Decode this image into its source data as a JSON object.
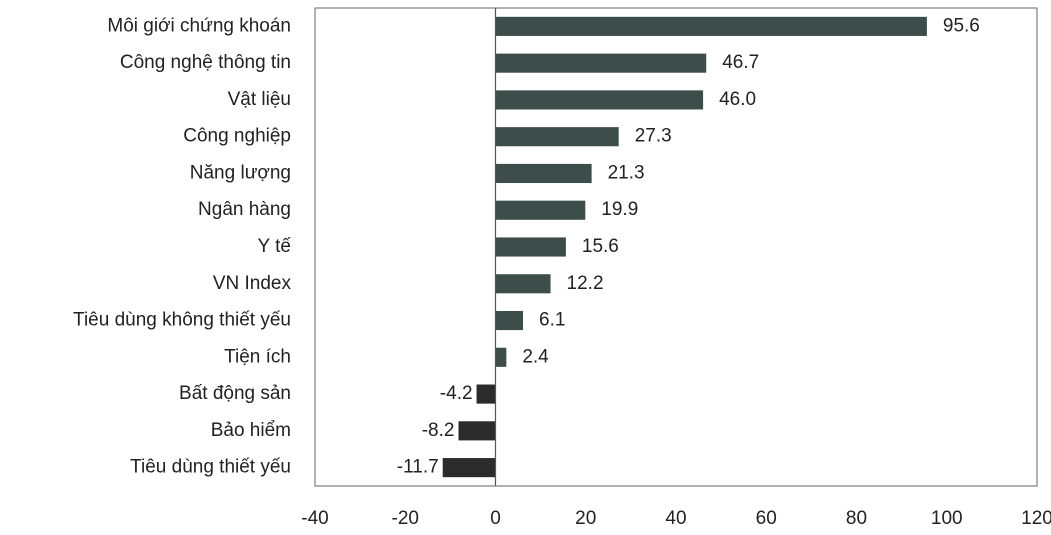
{
  "chart_data": {
    "type": "bar",
    "orientation": "horizontal",
    "categories": [
      "Môi giới chứng khoán",
      "Công nghệ thông tin",
      "Vật liệu",
      "Công nghiệp",
      "Năng lượng",
      "Ngân hàng",
      "Y tế",
      "VN Index",
      "Tiêu dùng không thiết yếu",
      "Tiện ích",
      "Bất động sản",
      "Bảo hiểm",
      "Tiêu dùng thiết yếu"
    ],
    "values": [
      95.6,
      46.7,
      46.0,
      27.3,
      21.3,
      19.9,
      15.6,
      12.2,
      6.1,
      2.4,
      -4.2,
      -8.2,
      -11.7
    ],
    "value_labels": [
      "95.6",
      "46.7",
      "46.0",
      "27.3",
      "21.3",
      "19.9",
      "15.6",
      "12.2",
      "6.1",
      "2.4",
      "-4.2",
      "-8.2",
      "-11.7"
    ],
    "xlim": [
      -40,
      120
    ],
    "xticks": [
      -40,
      -20,
      0,
      20,
      40,
      60,
      80,
      100,
      120
    ],
    "grid": false,
    "title": "",
    "xlabel": "",
    "ylabel": "",
    "colors": {
      "positive_bar": "#3d4d4a",
      "negative_bar": "#2b2b2b",
      "axis": "#555555",
      "text": "#222222"
    }
  }
}
